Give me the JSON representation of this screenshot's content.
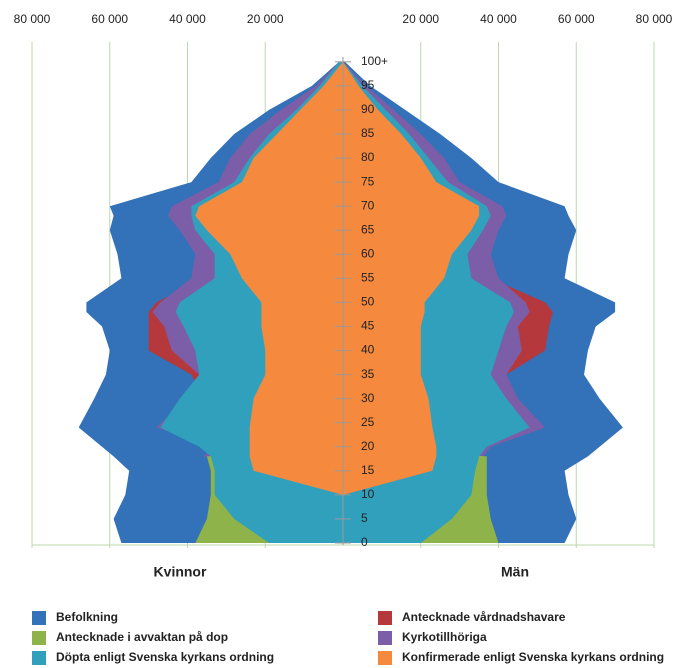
{
  "chart_data": {
    "type": "pyramid",
    "sides": [
      "Kvinnor",
      "Män"
    ],
    "y": [
      0,
      5,
      10,
      15,
      18,
      20,
      24,
      30,
      35,
      40,
      45,
      48,
      50,
      55,
      60,
      65,
      68,
      70,
      75,
      80,
      85,
      90,
      95,
      100
    ],
    "ylim": [
      0,
      101
    ],
    "yticks": [
      0,
      5,
      10,
      15,
      20,
      25,
      30,
      35,
      40,
      45,
      50,
      55,
      60,
      65,
      70,
      75,
      80,
      85,
      90,
      95,
      {
        "value": 100,
        "label": "100+"
      }
    ],
    "xlim": [
      0,
      80000
    ],
    "xticks": [
      {
        "value": 20000,
        "label": "20 000"
      },
      {
        "value": 40000,
        "label": "40 000"
      },
      {
        "value": 60000,
        "label": "60 000"
      },
      {
        "value": 80000,
        "label": "80 000"
      }
    ],
    "grid": true,
    "series": [
      {
        "name": "Befolkning",
        "color": "#3371b8",
        "values": [
          [
            57000,
            59000,
            56000,
            55000,
            59000,
            62000,
            68000,
            64000,
            61000,
            60000,
            62000,
            66000,
            66000,
            57000,
            58000,
            60000,
            59000,
            60000,
            39000,
            34000,
            28000,
            19000,
            8000,
            1000
          ],
          [
            57000,
            60000,
            58000,
            57000,
            63000,
            66000,
            72000,
            66000,
            62000,
            63000,
            65000,
            70000,
            70000,
            57000,
            58000,
            60000,
            58000,
            57000,
            40000,
            33000,
            25000,
            16000,
            7000,
            500
          ]
        ]
      },
      {
        "name": "Antecknade i avvaktan på dop",
        "color": "#8db34a",
        "values": [
          [
            38000,
            35000,
            34000,
            34000,
            35000,
            0,
            0,
            0,
            0,
            0,
            0,
            0,
            0,
            0,
            0,
            0,
            0,
            0,
            0,
            0,
            0,
            0,
            0,
            0
          ],
          [
            40000,
            38000,
            37000,
            37000,
            37000,
            0,
            0,
            0,
            0,
            0,
            0,
            0,
            0,
            0,
            0,
            0,
            0,
            0,
            0,
            0,
            0,
            0,
            0,
            0
          ]
        ]
      },
      {
        "name": "Döpta enligt Svenska kyrkans ordning",
        "color": "#31a0bc",
        "values": [
          [
            19000,
            28000,
            33000,
            33000,
            34000,
            37000,
            47000,
            42000,
            37000,
            38000,
            41000,
            43000,
            42000,
            33000,
            33000,
            38000,
            39000,
            39000,
            28000,
            24000,
            19000,
            12000,
            6000,
            1000
          ],
          [
            20000,
            28000,
            33000,
            34000,
            35000,
            37000,
            48000,
            42000,
            38000,
            40000,
            42000,
            44000,
            43000,
            33000,
            32000,
            36000,
            38000,
            37000,
            27000,
            22000,
            17000,
            11000,
            5000,
            0
          ]
        ]
      },
      {
        "name": "Antecknade vårdnadshavare",
        "color": "#b5383c",
        "values": [
          [
            0,
            0,
            0,
            0,
            34000,
            30000,
            38000,
            36000,
            39000,
            50000,
            50000,
            50000,
            48000,
            36000,
            36000,
            40000,
            43000,
            42000,
            30000,
            27000,
            22000,
            15000,
            6000,
            1000
          ],
          [
            0,
            0,
            0,
            0,
            30000,
            32000,
            42000,
            38000,
            42000,
            52000,
            53000,
            54000,
            52000,
            38000,
            36000,
            38000,
            40000,
            39000,
            28000,
            24000,
            19000,
            12000,
            5000,
            0
          ]
        ]
      },
      {
        "name": "Kyrkotillhöriga",
        "color": "#7c5ea8",
        "values": [
          [
            0,
            0,
            0,
            0,
            36000,
            33000,
            48000,
            40000,
            37000,
            44000,
            46000,
            49000,
            47000,
            39000,
            38000,
            42000,
            45000,
            44000,
            32000,
            29000,
            24000,
            16000,
            7000,
            1000
          ],
          [
            0,
            0,
            0,
            0,
            36000,
            38000,
            52000,
            45000,
            42000,
            46000,
            45000,
            48000,
            47000,
            40000,
            38000,
            40000,
            42000,
            41000,
            30000,
            26000,
            20000,
            13000,
            6000,
            0
          ]
        ]
      },
      {
        "name": "Konfirmerade enligt Svenska kyrkans ordning",
        "color": "#f58a3f",
        "values": [
          [
            0,
            0,
            0,
            23000,
            24000,
            24000,
            24000,
            23000,
            20000,
            20000,
            21000,
            21000,
            21000,
            26000,
            29000,
            35000,
            38000,
            37000,
            26000,
            23000,
            17000,
            11000,
            5000,
            0
          ],
          [
            0,
            0,
            0,
            23000,
            24000,
            24000,
            23000,
            22000,
            20000,
            20000,
            20000,
            21000,
            21000,
            26000,
            28000,
            33000,
            35000,
            35000,
            24000,
            20000,
            15000,
            9000,
            4000,
            0
          ]
        ]
      }
    ]
  }
}
